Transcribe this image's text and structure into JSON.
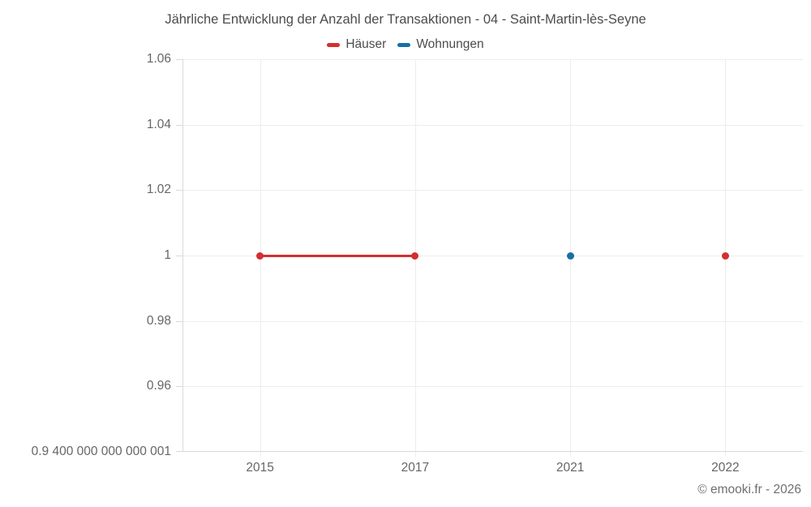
{
  "title": "Jährliche Entwicklung der Anzahl der Transaktionen - 04 - Saint-Martin-lès-Seyne",
  "legend": {
    "items": [
      {
        "label": "Häuser",
        "color": "#d32f2f"
      },
      {
        "label": "Wohnungen",
        "color": "#186fa5"
      }
    ]
  },
  "footer": {
    "copyright": "© emooki.fr - 2026"
  },
  "chart_data": {
    "type": "line",
    "title": "Jährliche Entwicklung der Anzahl der Transaktionen - 04 - Saint-Martin-lès-Seyne",
    "categories": [
      "2015",
      "2017",
      "2021",
      "2022"
    ],
    "series": [
      {
        "name": "Häuser",
        "color": "#d32f2f",
        "values": [
          1,
          1,
          null,
          1
        ]
      },
      {
        "name": "Wohnungen",
        "color": "#186fa5",
        "values": [
          null,
          null,
          1,
          null
        ]
      }
    ],
    "ylim": [
      0.94,
      1.06
    ],
    "yticks": [
      {
        "value": 1.06,
        "label": "1.06"
      },
      {
        "value": 1.04,
        "label": "1.04"
      },
      {
        "value": 1.02,
        "label": "1.02"
      },
      {
        "value": 1.0,
        "label": "1"
      },
      {
        "value": 0.98,
        "label": "0.98"
      },
      {
        "value": 0.96,
        "label": "0.96"
      },
      {
        "value": 0.94,
        "label": "0.9 400 000 000 000 001"
      }
    ],
    "xlabel": "",
    "ylabel": "",
    "grid": true,
    "legend_position": "top",
    "marker_size": 9,
    "line_width": 3
  }
}
